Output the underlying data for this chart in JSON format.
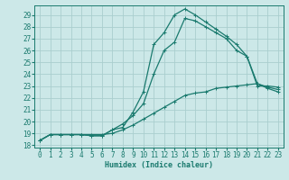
{
  "xlabel": "Humidex (Indice chaleur)",
  "bg_color": "#cce8e8",
  "grid_color": "#aacece",
  "line_color": "#1a7a6e",
  "xlim": [
    -0.5,
    23.5
  ],
  "ylim": [
    17.8,
    29.8
  ],
  "yticks": [
    18,
    19,
    20,
    21,
    22,
    23,
    24,
    25,
    26,
    27,
    28,
    29
  ],
  "xticks": [
    0,
    1,
    2,
    3,
    4,
    5,
    6,
    7,
    8,
    9,
    10,
    11,
    12,
    13,
    14,
    15,
    16,
    17,
    18,
    19,
    20,
    21,
    22,
    23
  ],
  "line1_x": [
    0,
    1,
    2,
    3,
    4,
    5,
    6,
    7,
    8,
    9,
    10,
    11,
    12,
    13,
    14,
    15,
    16,
    17,
    18,
    19,
    20,
    21,
    22,
    23
  ],
  "line1_y": [
    18.4,
    18.9,
    18.9,
    18.9,
    18.9,
    18.9,
    18.9,
    19.0,
    19.3,
    19.7,
    20.2,
    20.7,
    21.2,
    21.7,
    22.2,
    22.4,
    22.5,
    22.8,
    22.9,
    23.0,
    23.1,
    23.2,
    22.9,
    22.7
  ],
  "line2_x": [
    0,
    1,
    2,
    3,
    4,
    5,
    6,
    7,
    8,
    9,
    10,
    11,
    12,
    13,
    14,
    15,
    16,
    17,
    18,
    19,
    20,
    21,
    22,
    23
  ],
  "line2_y": [
    18.4,
    18.9,
    18.9,
    18.9,
    18.9,
    18.8,
    18.8,
    19.3,
    19.5,
    20.8,
    22.5,
    26.5,
    27.5,
    29.0,
    29.5,
    29.0,
    28.4,
    27.8,
    27.2,
    26.5,
    25.5,
    23.0,
    23.0,
    22.9
  ],
  "line3_x": [
    0,
    1,
    2,
    3,
    4,
    5,
    6,
    7,
    8,
    9,
    10,
    11,
    12,
    13,
    14,
    15,
    16,
    17,
    18,
    19,
    20,
    21,
    22,
    23
  ],
  "line3_y": [
    18.4,
    18.9,
    18.9,
    18.9,
    18.9,
    18.8,
    18.8,
    19.3,
    19.8,
    20.5,
    21.5,
    24.0,
    26.0,
    26.7,
    28.7,
    28.5,
    28.0,
    27.5,
    27.0,
    26.0,
    25.5,
    23.2,
    22.8,
    22.5
  ],
  "marker": "+",
  "markersize": 3,
  "linewidth": 0.9,
  "tick_fontsize": 5.5,
  "xlabel_fontsize": 6.0
}
